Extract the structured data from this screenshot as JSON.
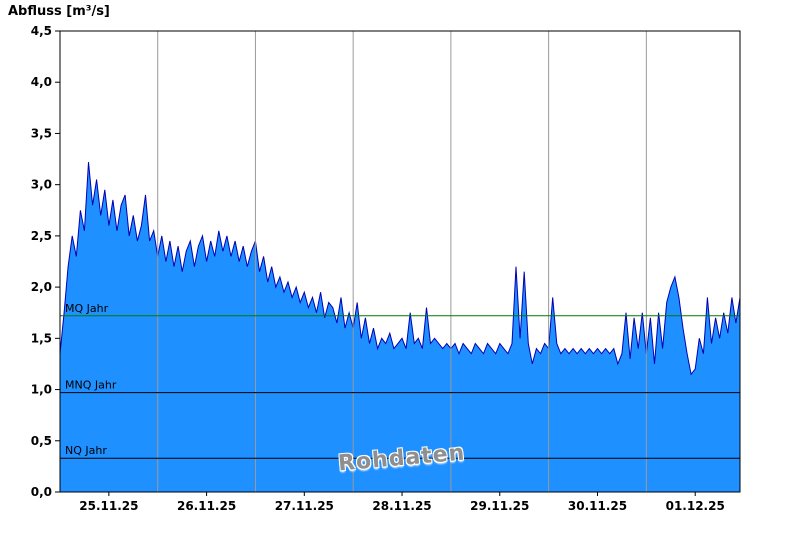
{
  "title": "Abfluss [m³/s]",
  "watermark": "Rohdaten",
  "colors": {
    "area_fill": "#1E90FF",
    "line": "#0000B4",
    "grid": "#9a9a9a",
    "border": "#000000",
    "mq_line": "#007a00",
    "mnq_line": "#000000",
    "nq_line": "#000000",
    "tick_text": "#000000",
    "background": "#ffffff"
  },
  "chart_data": {
    "type": "area",
    "title": "Abfluss [m³/s]",
    "ylabel": "Abfluss [m³/s]",
    "xlabel": "",
    "ylim": [
      0,
      4.5
    ],
    "y_tick_step": 0.5,
    "y_tick_labels": [
      "0,0",
      "0,5",
      "1,0",
      "1,5",
      "2,0",
      "2,5",
      "3,0",
      "3,5",
      "4,0",
      "4,5"
    ],
    "x_tick_labels": [
      "25.11.25",
      "26.11.25",
      "27.11.25",
      "28.11.25",
      "29.11.25",
      "30.11.25",
      "01.12.25"
    ],
    "hours_per_point": 1,
    "points_per_day": 24,
    "grid": "vertical-day-boundaries",
    "legend_position": "none",
    "annotation": "Rohdaten",
    "reference_lines": [
      {
        "label": "MQ Jahr",
        "value": 1.72,
        "color": "#007a00"
      },
      {
        "label": "MNQ Jahr",
        "value": 0.97,
        "color": "#000000"
      },
      {
        "label": "NQ Jahr",
        "value": 0.33,
        "color": "#000000"
      }
    ],
    "values": [
      1.35,
      1.75,
      2.2,
      2.5,
      2.3,
      2.75,
      2.55,
      3.22,
      2.8,
      3.05,
      2.7,
      2.95,
      2.6,
      2.85,
      2.55,
      2.8,
      2.9,
      2.5,
      2.7,
      2.45,
      2.6,
      2.9,
      2.45,
      2.55,
      2.3,
      2.5,
      2.25,
      2.45,
      2.2,
      2.4,
      2.15,
      2.35,
      2.45,
      2.2,
      2.4,
      2.5,
      2.25,
      2.45,
      2.3,
      2.55,
      2.35,
      2.5,
      2.3,
      2.45,
      2.25,
      2.4,
      2.2,
      2.35,
      2.45,
      2.15,
      2.3,
      2.05,
      2.2,
      2.0,
      2.1,
      1.95,
      2.05,
      1.9,
      2.0,
      1.85,
      1.95,
      1.8,
      1.9,
      1.75,
      1.95,
      1.7,
      1.85,
      1.8,
      1.65,
      1.9,
      1.6,
      1.75,
      1.6,
      1.85,
      1.5,
      1.7,
      1.45,
      1.6,
      1.4,
      1.5,
      1.45,
      1.55,
      1.4,
      1.45,
      1.5,
      1.4,
      1.75,
      1.45,
      1.5,
      1.4,
      1.8,
      1.45,
      1.5,
      1.45,
      1.4,
      1.45,
      1.4,
      1.45,
      1.35,
      1.45,
      1.4,
      1.35,
      1.45,
      1.4,
      1.35,
      1.45,
      1.4,
      1.35,
      1.45,
      1.4,
      1.35,
      1.45,
      2.2,
      1.5,
      2.15,
      1.45,
      1.25,
      1.4,
      1.35,
      1.45,
      1.4,
      1.9,
      1.45,
      1.35,
      1.4,
      1.35,
      1.4,
      1.35,
      1.4,
      1.35,
      1.4,
      1.35,
      1.4,
      1.35,
      1.4,
      1.35,
      1.4,
      1.25,
      1.35,
      1.75,
      1.3,
      1.7,
      1.4,
      1.75,
      1.35,
      1.7,
      1.25,
      1.75,
      1.4,
      1.85,
      2.0,
      2.1,
      1.9,
      1.6,
      1.35,
      1.15,
      1.2,
      1.5,
      1.35,
      1.9,
      1.45,
      1.7,
      1.5,
      1.75,
      1.55,
      1.9,
      1.65,
      1.9
    ]
  }
}
